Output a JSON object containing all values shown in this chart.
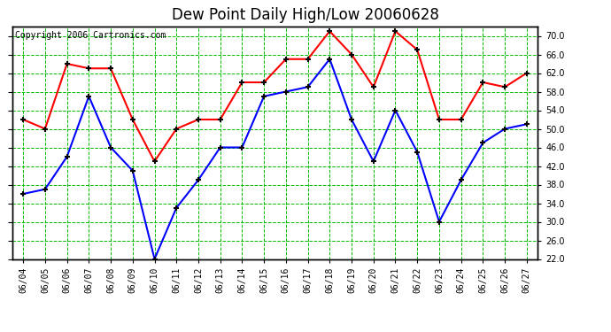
{
  "title": "Dew Point Daily High/Low 20060628",
  "copyright": "Copyright 2006 Cartronics.com",
  "dates": [
    "06/04",
    "06/05",
    "06/06",
    "06/07",
    "06/08",
    "06/09",
    "06/10",
    "06/11",
    "06/12",
    "06/13",
    "06/14",
    "06/15",
    "06/16",
    "06/17",
    "06/18",
    "06/19",
    "06/20",
    "06/21",
    "06/22",
    "06/23",
    "06/24",
    "06/25",
    "06/26",
    "06/27"
  ],
  "high": [
    52,
    50,
    64,
    63,
    63,
    52,
    43,
    50,
    52,
    52,
    60,
    60,
    65,
    65,
    71,
    66,
    59,
    71,
    67,
    52,
    52,
    60,
    59,
    62
  ],
  "low": [
    36,
    37,
    44,
    57,
    46,
    41,
    22,
    33,
    39,
    46,
    46,
    57,
    58,
    59,
    65,
    52,
    43,
    54,
    45,
    30,
    39,
    47,
    50,
    51
  ],
  "high_color": "#ff0000",
  "low_color": "#0000ff",
  "marker": "+",
  "marker_color": "#000000",
  "bg_color": "#ffffff",
  "plot_bg_color": "#ffffff",
  "grid_color": "#00bb00",
  "border_color": "#000000",
  "ylim": [
    22,
    72
  ],
  "yticks": [
    22.0,
    26.0,
    30.0,
    34.0,
    38.0,
    42.0,
    46.0,
    50.0,
    54.0,
    58.0,
    62.0,
    66.0,
    70.0
  ],
  "title_fontsize": 12,
  "copyright_fontsize": 7,
  "tick_fontsize": 7,
  "linewidth": 1.5,
  "markersize": 5
}
